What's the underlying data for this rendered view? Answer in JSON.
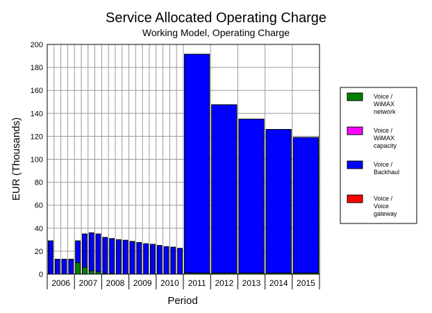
{
  "chart_data": {
    "type": "bar",
    "stacked": true,
    "title": "Service Allocated Operating Charge",
    "subtitle": "Working Model, Operating Charge",
    "xlabel": "Period",
    "ylabel": "EUR (Thousands)",
    "ylim": [
      0,
      200
    ],
    "yticks": [
      0,
      20,
      40,
      60,
      80,
      100,
      120,
      140,
      160,
      180,
      200
    ],
    "grid": true,
    "legend_position": "right",
    "x_tick_labels": [
      "2006",
      "2007",
      "2008",
      "2009",
      "2010",
      "2011",
      "2012",
      "2013",
      "2014",
      "2015"
    ],
    "quarterly_periods": 20,
    "annual_periods": 5,
    "series": [
      {
        "name": "Voice / WiMAX network",
        "color": "#008000",
        "values": [
          0,
          0,
          0,
          0,
          10,
          6,
          3,
          2,
          0.5,
          0.5,
          0,
          0,
          0,
          0,
          0,
          0,
          0,
          0,
          0,
          0,
          1,
          1,
          1,
          1,
          1
        ]
      },
      {
        "name": "Voice / WiMAX capacity",
        "color": "#ff00ff",
        "values": [
          0,
          0,
          0,
          0,
          0,
          0,
          0,
          0,
          0,
          0,
          0,
          0,
          0,
          0,
          0,
          0,
          0,
          0,
          0,
          0,
          0,
          0,
          0,
          0,
          0
        ]
      },
      {
        "name": "Voice / Backhaul",
        "color": "#0000ff",
        "values": [
          29,
          13,
          13,
          13,
          19,
          29,
          33,
          33,
          31.5,
          30.5,
          30,
          29.5,
          28.5,
          27.5,
          26.5,
          26,
          25,
          24,
          23.5,
          22.5,
          190.5,
          146.5,
          134,
          125,
          118
        ]
      },
      {
        "name": "Voice / Voice gateway",
        "color": "#ff0000",
        "values": [
          0,
          0,
          0,
          0,
          0,
          0,
          0,
          0,
          0,
          0,
          0,
          0,
          0,
          0,
          0,
          0,
          0,
          0,
          0,
          0,
          0,
          0,
          0,
          0,
          0
        ]
      }
    ]
  }
}
